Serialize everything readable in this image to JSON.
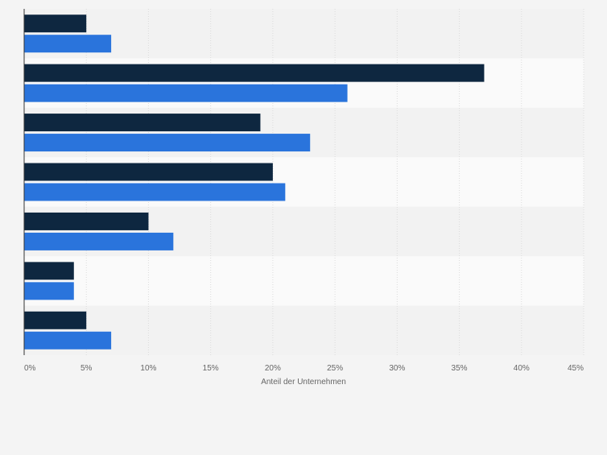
{
  "chart_data": {
    "type": "bar",
    "orientation": "horizontal",
    "title": "",
    "xlabel": "Anteil der Unternehmen",
    "ylabel": "",
    "categories": [
      "",
      "",
      "",
      "",
      "",
      "",
      ""
    ],
    "series": [
      {
        "name": "",
        "color": "#0e2740",
        "values": [
          5,
          37,
          19,
          20,
          10,
          4,
          5
        ]
      },
      {
        "name": "",
        "color": "#2a74dc",
        "values": [
          7,
          26,
          23,
          21,
          12,
          4,
          7
        ]
      }
    ],
    "xlim": [
      0,
      45
    ],
    "xticks": [
      0,
      5,
      10,
      15,
      20,
      25,
      30,
      35,
      40,
      45
    ],
    "xtick_labels": [
      "0%",
      "5%",
      "10%",
      "15%",
      "20%",
      "25%",
      "30%",
      "35%",
      "40%",
      "45%"
    ],
    "grid": true,
    "legend": "none",
    "colors": {
      "background": "#f4f4f4",
      "band_light": "#fafafa",
      "band_dark": "#f2f2f2",
      "grid": "#dcdcdc",
      "axis": "#333333",
      "tick_text": "#666666"
    }
  }
}
